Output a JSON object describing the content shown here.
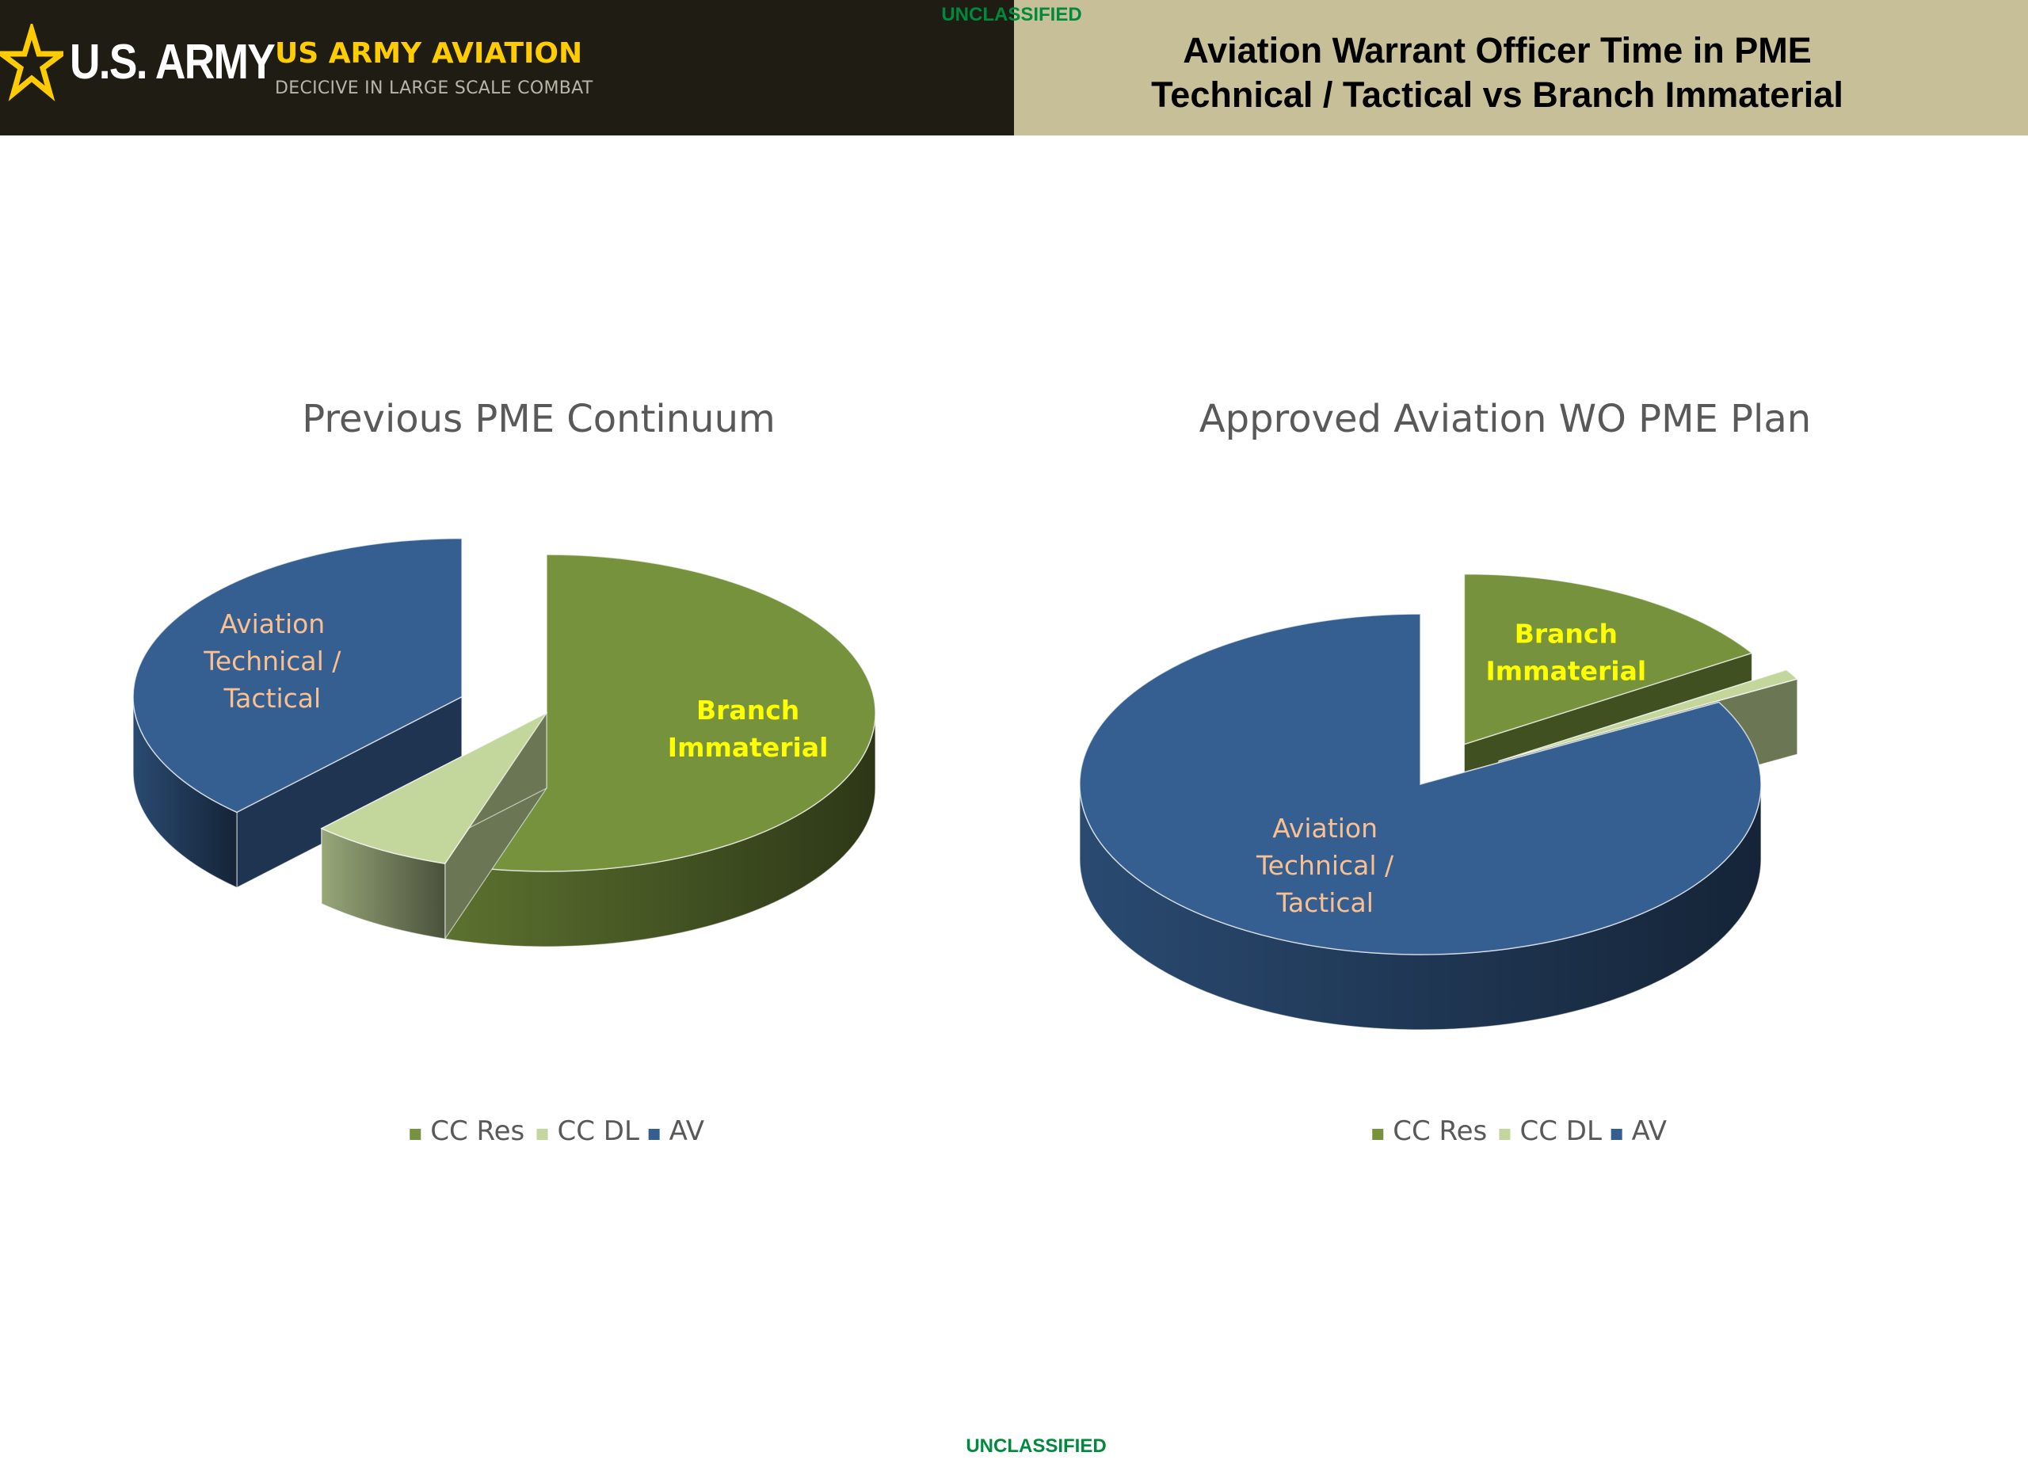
{
  "header": {
    "army_wordmark": "U.S. ARMY",
    "brand_title": "US ARMY AVIATION",
    "brand_subtitle": "DECICIVE IN LARGE SCALE COMBAT",
    "slide_title_line1": "Aviation Warrant Officer Time in PME",
    "slide_title_line2": "Technical / Tactical vs Branch Immaterial"
  },
  "classification": {
    "top": "UNCLASSIFIED",
    "bottom": "UNCLASSIFIED"
  },
  "colors": {
    "header_dark": "#1f1c14",
    "header_tan": "#c7bf98",
    "brand_gold": "#ffcc00",
    "classification_green": "#008a3d",
    "cc_res": "#76923c",
    "cc_dl": "#c3d69b",
    "av": "#365f91",
    "label_yellow": "#ffff00",
    "label_peach": "#fac090"
  },
  "chart_data": [
    {
      "type": "pie",
      "title": "Previous PME Continuum",
      "categories": [
        "CC Res",
        "CC DL",
        "AV"
      ],
      "values": [
        55,
        7,
        38
      ],
      "unit": "%",
      "exploded": [
        "AV"
      ],
      "slice_labels": {
        "CC Res": [
          "Branch",
          "Immaterial"
        ],
        "AV": [
          "Aviation",
          "Technical /",
          "Tactical"
        ]
      },
      "legend": [
        "CC Res",
        "CC DL",
        "AV"
      ],
      "legend_position": "bottom"
    },
    {
      "type": "pie",
      "title": "Approved Aviation WO PME Plan",
      "categories": [
        "CC Res",
        "CC DL",
        "AV"
      ],
      "values": [
        16,
        1,
        83
      ],
      "unit": "%",
      "exploded": [
        "CC Res",
        "CC DL"
      ],
      "slice_labels": {
        "CC Res": [
          "Branch",
          "Immaterial"
        ],
        "AV": [
          "Aviation",
          "Technical /",
          "Tactical"
        ]
      },
      "legend": [
        "CC Res",
        "CC DL",
        "AV"
      ],
      "legend_position": "bottom"
    }
  ]
}
